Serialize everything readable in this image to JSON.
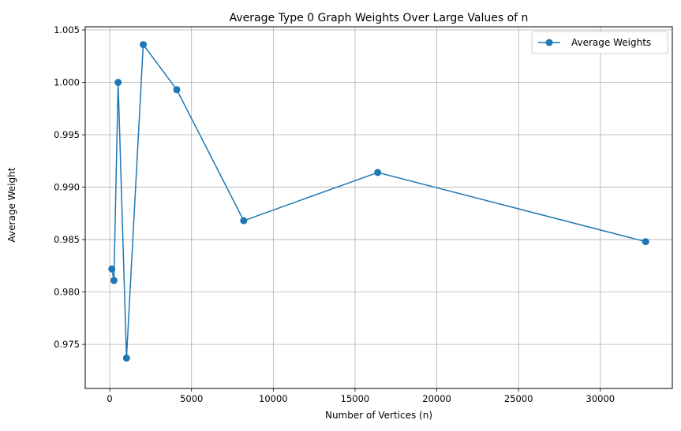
{
  "chart_data": {
    "type": "line",
    "title": "Average Type 0 Graph Weights Over Large Values of n",
    "xlabel": "Number of Vertices (n)",
    "ylabel": "Average Weight",
    "xlim": [
      -1500,
      34400
    ],
    "ylim": [
      0.9708,
      1.0053
    ],
    "xticks": [
      0,
      5000,
      10000,
      15000,
      20000,
      25000,
      30000
    ],
    "yticks": [
      0.975,
      0.98,
      0.985,
      0.99,
      0.995,
      1.0,
      1.005
    ],
    "xtick_labels": [
      "0",
      "5000",
      "10000",
      "15000",
      "20000",
      "25000",
      "30000"
    ],
    "ytick_labels": [
      "0.975",
      "0.980",
      "0.985",
      "0.990",
      "0.995",
      "1.000",
      "1.005"
    ],
    "grid": true,
    "legend_position": "top-right",
    "series": [
      {
        "name": "Average Weights",
        "color": "#1f77b4",
        "marker": "circle",
        "x": [
          128,
          256,
          512,
          1024,
          2048,
          4096,
          8192,
          16384,
          32768
        ],
        "y": [
          0.9822,
          0.9811,
          1.0,
          0.9737,
          1.0036,
          0.9993,
          0.9868,
          0.9914,
          0.9848
        ]
      }
    ]
  }
}
